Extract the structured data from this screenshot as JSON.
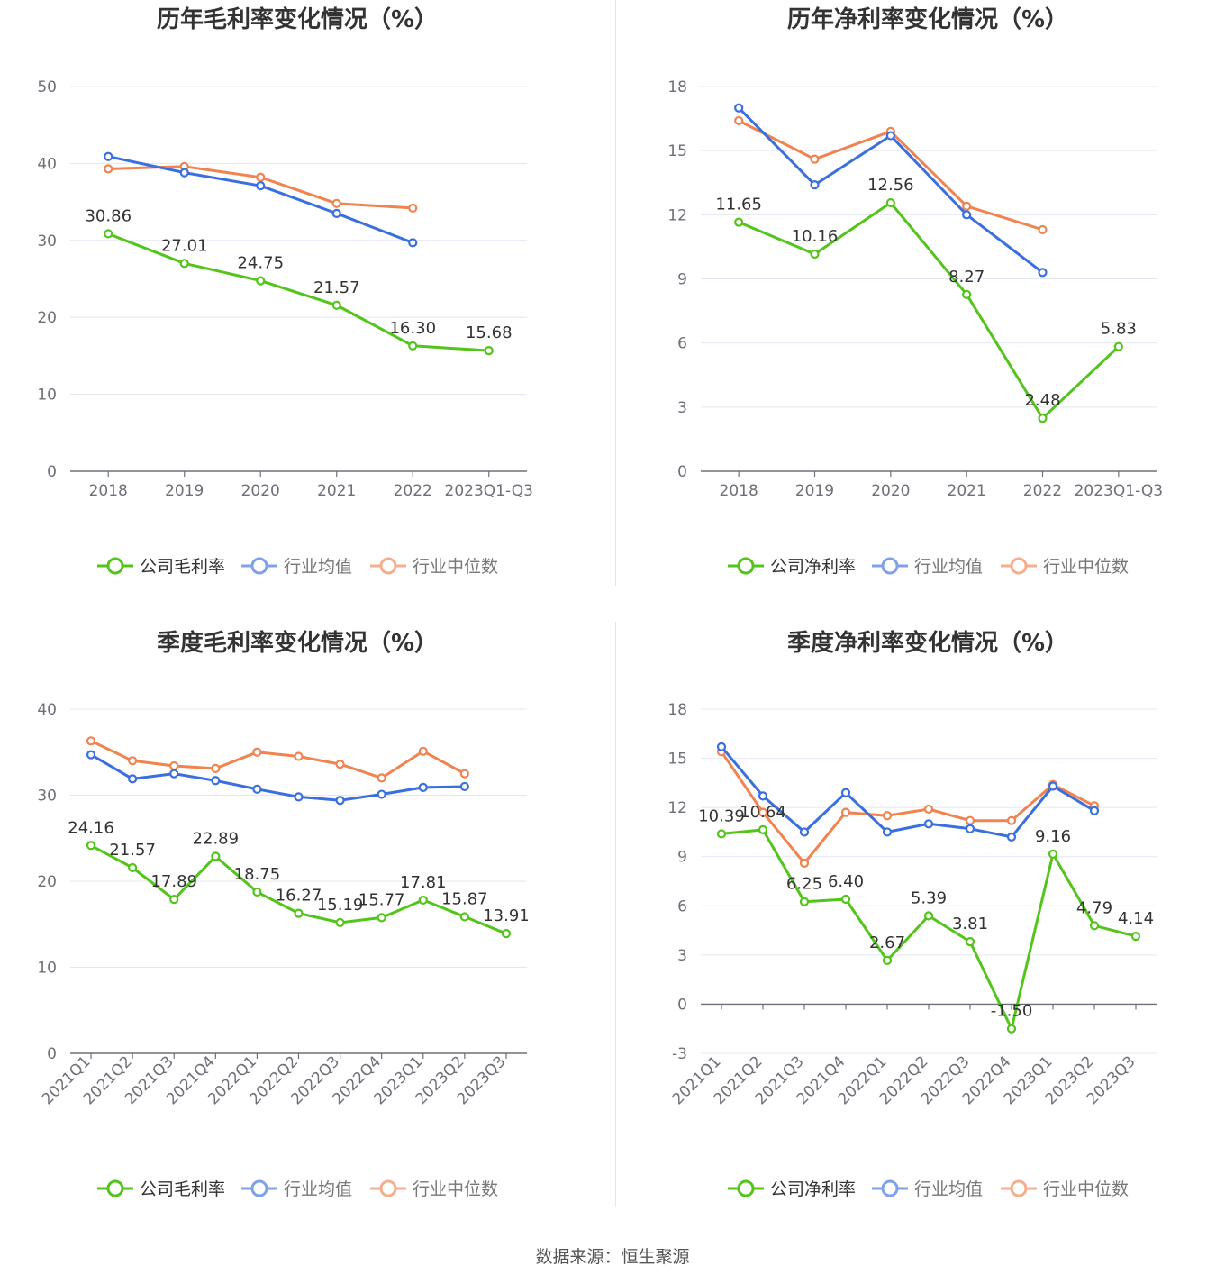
{
  "source": {
    "label": "数据来源：",
    "value": "恒生聚源"
  },
  "chart_data": [
    {
      "type": "line",
      "title": "历年毛利率变化情况（%）",
      "categories": [
        "2018",
        "2019",
        "2020",
        "2021",
        "2022",
        "2023Q1-Q3"
      ],
      "ylim": [
        0,
        50
      ],
      "yticks": [
        0,
        10,
        20,
        30,
        40,
        50
      ],
      "series": [
        {
          "name": "公司毛利率",
          "color": "#52c41a",
          "values": [
            30.86,
            27.01,
            24.75,
            21.57,
            16.3,
            15.68
          ],
          "labels": [
            "30.86",
            "27.01",
            "24.75",
            "21.57",
            "16.30",
            "15.68"
          ]
        },
        {
          "name": "行业均值",
          "color": "#3a6fdf",
          "values": [
            40.9,
            38.8,
            37.1,
            33.5,
            29.7,
            null
          ]
        },
        {
          "name": "行业中位数",
          "color": "#f0834f",
          "values": [
            39.3,
            39.6,
            38.2,
            34.8,
            34.2,
            null
          ]
        }
      ]
    },
    {
      "type": "line",
      "title": "历年净利率变化情况（%）",
      "categories": [
        "2018",
        "2019",
        "2020",
        "2021",
        "2022",
        "2023Q1-Q3"
      ],
      "ylim": [
        0,
        18
      ],
      "yticks": [
        0,
        3,
        6,
        9,
        12,
        15,
        18
      ],
      "series": [
        {
          "name": "公司净利率",
          "color": "#52c41a",
          "values": [
            11.65,
            10.16,
            12.56,
            8.27,
            2.48,
            5.83
          ],
          "labels": [
            "11.65",
            "10.16",
            "12.56",
            "8.27",
            "2.48",
            "5.83"
          ]
        },
        {
          "name": "行业均值",
          "color": "#3a6fdf",
          "values": [
            17.0,
            13.4,
            15.7,
            12.0,
            9.3,
            null
          ]
        },
        {
          "name": "行业中位数",
          "color": "#f0834f",
          "values": [
            16.4,
            14.6,
            15.9,
            12.4,
            11.3,
            null
          ]
        }
      ]
    },
    {
      "type": "line",
      "title": "季度毛利率变化情况（%）",
      "categories": [
        "2021Q1",
        "2021Q2",
        "2021Q3",
        "2021Q4",
        "2022Q1",
        "2022Q2",
        "2022Q3",
        "2022Q4",
        "2023Q1",
        "2023Q2",
        "2023Q3"
      ],
      "ylim": [
        0,
        40
      ],
      "yticks": [
        0,
        10,
        20,
        30,
        40
      ],
      "series": [
        {
          "name": "公司毛利率",
          "color": "#52c41a",
          "values": [
            24.16,
            21.57,
            17.89,
            22.89,
            18.75,
            16.27,
            15.19,
            15.77,
            17.81,
            15.87,
            13.91
          ],
          "labels": [
            "24.16",
            "21.57",
            "17.89",
            "22.89",
            "18.75",
            "16.27",
            "15.19",
            "15.77",
            "17.81",
            "15.87",
            "13.91"
          ]
        },
        {
          "name": "行业均值",
          "color": "#3a6fdf",
          "values": [
            34.7,
            31.9,
            32.5,
            31.7,
            30.7,
            29.8,
            29.4,
            30.1,
            30.9,
            31.0,
            null
          ]
        },
        {
          "name": "行业中位数",
          "color": "#f0834f",
          "values": [
            36.3,
            34.0,
            33.4,
            33.1,
            35.0,
            34.5,
            33.6,
            32.0,
            35.1,
            32.5,
            null
          ]
        }
      ]
    },
    {
      "type": "line",
      "title": "季度净利率变化情况（%）",
      "categories": [
        "2021Q1",
        "2021Q2",
        "2021Q3",
        "2021Q4",
        "2022Q1",
        "2022Q2",
        "2022Q3",
        "2022Q4",
        "2023Q1",
        "2023Q2",
        "2023Q3"
      ],
      "ylim": [
        -3,
        18
      ],
      "yticks": [
        -3,
        0,
        3,
        6,
        9,
        12,
        15,
        18
      ],
      "series": [
        {
          "name": "公司净利率",
          "color": "#52c41a",
          "values": [
            10.39,
            10.64,
            6.25,
            6.4,
            2.67,
            5.39,
            3.81,
            -1.5,
            9.16,
            4.79,
            4.14
          ],
          "labels": [
            "10.39",
            "10.64",
            "6.25",
            "6.40",
            "2.67",
            "5.39",
            "3.81",
            "-1.50",
            "9.16",
            "4.79",
            "4.14"
          ]
        },
        {
          "name": "行业均值",
          "color": "#3a6fdf",
          "values": [
            15.7,
            12.7,
            10.5,
            12.9,
            10.5,
            11.0,
            10.7,
            10.2,
            13.3,
            11.8,
            null
          ]
        },
        {
          "name": "行业中位数",
          "color": "#f0834f",
          "values": [
            15.4,
            11.7,
            8.6,
            11.7,
            11.5,
            11.9,
            11.2,
            11.2,
            13.4,
            12.1,
            null
          ]
        }
      ]
    }
  ]
}
